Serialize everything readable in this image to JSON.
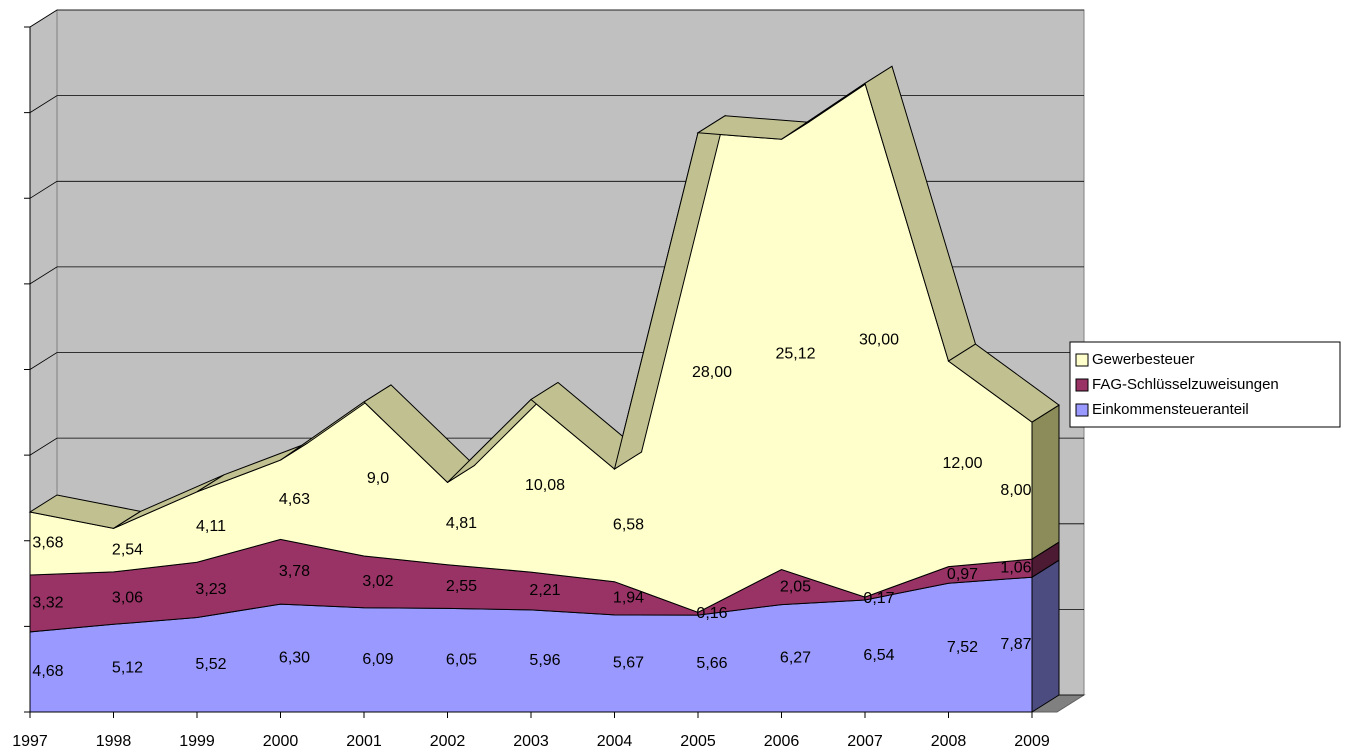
{
  "chart_data": {
    "type": "area3d",
    "stacked": true,
    "categories": [
      "1997",
      "1998",
      "1999",
      "2000",
      "2001",
      "2002",
      "2003",
      "2004",
      "2005",
      "2006",
      "2007",
      "2008",
      "2009"
    ],
    "series": [
      {
        "name": "Einkommensteueranteil",
        "color": "#9999ff",
        "values": [
          4.68,
          5.12,
          5.52,
          6.3,
          6.09,
          6.05,
          5.96,
          5.67,
          5.66,
          6.27,
          6.54,
          7.52,
          7.87
        ],
        "value_labels": [
          "4,68",
          "5,12",
          "5,52",
          "6,30",
          "6,09",
          "6,05",
          "5,96",
          "5,67",
          "5,66",
          "6,27",
          "6,54",
          "7,52",
          "7,87"
        ]
      },
      {
        "name": "FAG-Schlüsselzuweisungen",
        "color": "#993366",
        "values": [
          3.32,
          3.06,
          3.23,
          3.78,
          3.02,
          2.55,
          2.21,
          1.94,
          0.16,
          2.05,
          0.17,
          0.97,
          1.06
        ],
        "value_labels": [
          "3,32",
          "3,06",
          "3,23",
          "3,78",
          "3,02",
          "2,55",
          "2,21",
          "1,94",
          "0,16",
          "2,05",
          "0,17",
          "0,97",
          "1,06"
        ]
      },
      {
        "name": "Gewerbesteuer",
        "color": "#ffffcc",
        "values": [
          3.68,
          2.54,
          4.11,
          4.63,
          9.0,
          4.81,
          10.08,
          6.58,
          28.0,
          25.12,
          30.0,
          12.0,
          8.0
        ],
        "value_labels": [
          "3,68",
          "2,54",
          "4,11",
          "4,63",
          "9,0",
          "4,81",
          "10,08",
          "6,58",
          "28,00",
          "25,12",
          "30,00",
          "12,00",
          "8,00"
        ]
      }
    ],
    "ylim": [
      0,
      40
    ],
    "yticks": [
      0,
      5,
      10,
      15,
      20,
      25,
      30,
      35,
      40
    ],
    "grid": true,
    "legend": "right"
  }
}
